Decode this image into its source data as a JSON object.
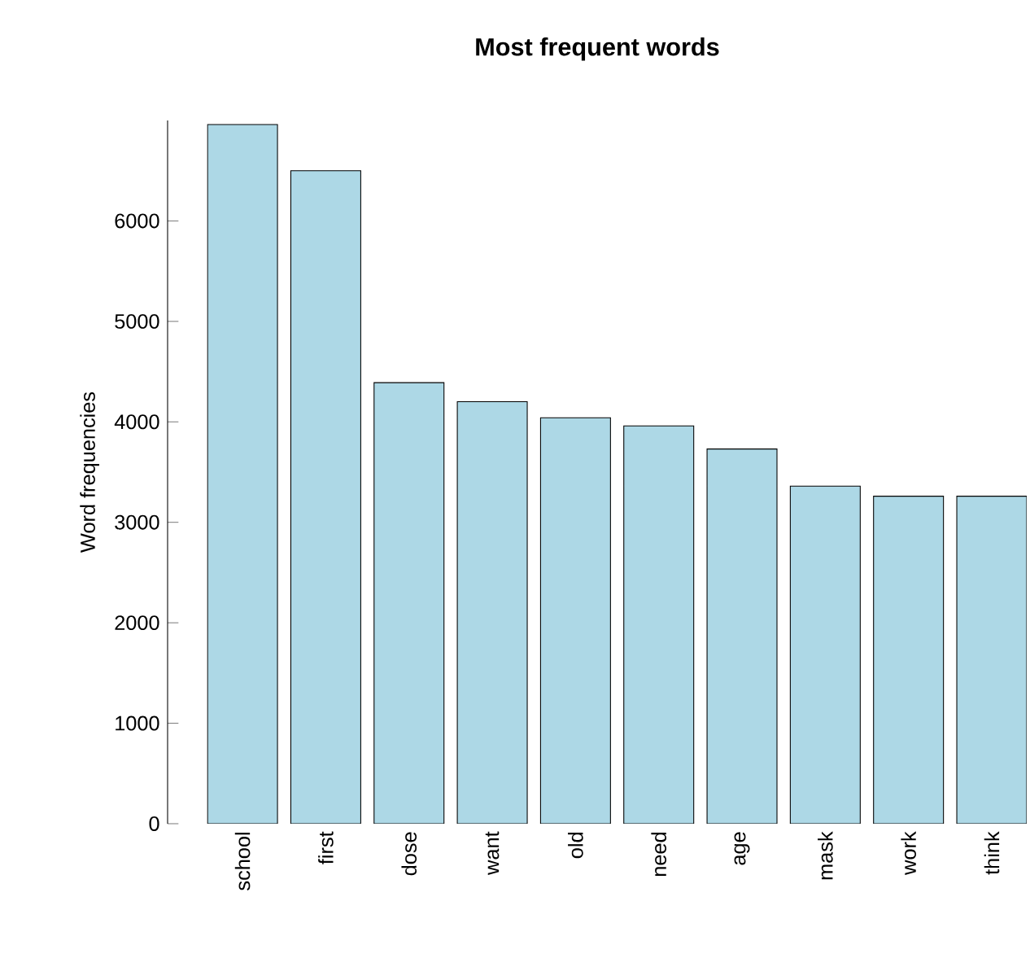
{
  "chart_data": {
    "type": "bar",
    "title": "Most frequent words",
    "ylabel": "Word frequencies",
    "categories": [
      "school",
      "first",
      "dose",
      "want",
      "old",
      "need",
      "age",
      "mask",
      "work",
      "think"
    ],
    "values": [
      6960,
      6500,
      4390,
      4200,
      4040,
      3960,
      3730,
      3360,
      3260,
      3260
    ],
    "color": "#add8e6",
    "ylim": [
      0,
      7000
    ],
    "yticks": [
      0,
      1000,
      2000,
      3000,
      4000,
      5000,
      6000
    ]
  }
}
